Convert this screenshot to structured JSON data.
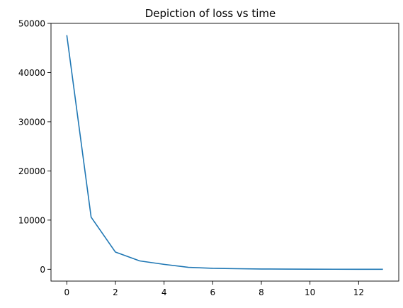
{
  "chart_data": {
    "type": "line",
    "title": "Depiction of loss vs time",
    "xlabel": "",
    "ylabel": "",
    "xlim": [
      -0.65,
      13.65
    ],
    "ylim": [
      -2400,
      50000
    ],
    "xticks": [
      0,
      2,
      4,
      6,
      8,
      10,
      12
    ],
    "xtick_labels": [
      "0",
      "2",
      "4",
      "6",
      "8",
      "10",
      "12"
    ],
    "yticks": [
      0,
      10000,
      20000,
      30000,
      40000,
      50000
    ],
    "ytick_labels": [
      "0",
      "10000",
      "20000",
      "30000",
      "40000",
      "50000"
    ],
    "grid": false,
    "legend": "none",
    "line_color": "#1f77b4",
    "series": [
      {
        "x": [
          0,
          1,
          2,
          3,
          4,
          5,
          6,
          7,
          8,
          9,
          10,
          11,
          12,
          13
        ],
        "values": [
          47600,
          10600,
          3500,
          1700,
          1000,
          400,
          200,
          120,
          60,
          40,
          20,
          10,
          5,
          2
        ]
      }
    ]
  }
}
